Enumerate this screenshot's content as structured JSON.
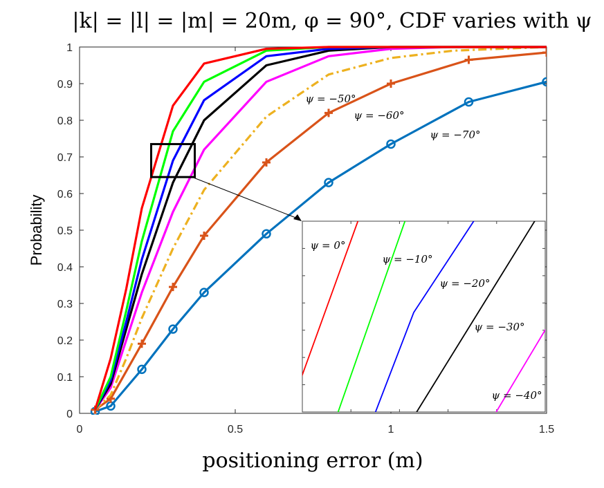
{
  "chart_data": {
    "type": "line",
    "title": "|k| = |l| = |m| = 20m, φ = 90°, CDF varies with ψ",
    "xlabel": "positioning error (m)",
    "ylabel": "Probability",
    "xlim": [
      0,
      1.5
    ],
    "ylim": [
      0,
      1
    ],
    "xticks": [
      0,
      0.5,
      1,
      1.5
    ],
    "xtick_labels": [
      "0",
      "0.5",
      "1",
      "1.5"
    ],
    "yticks": [
      0,
      0.1,
      0.2,
      0.3,
      0.4,
      0.5,
      0.6,
      0.7,
      0.8,
      0.9,
      1
    ],
    "ytick_labels": [
      "0",
      "0.1",
      "0.2",
      "0.3",
      "0.4",
      "0.5",
      "0.6",
      "0.7",
      "0.8",
      "0.9",
      "1"
    ],
    "grid": false,
    "series": [
      {
        "name": "ψ = 0°",
        "color": "#ff0000",
        "style": "solid",
        "marker": "none",
        "x": [
          0.05,
          0.1,
          0.15,
          0.2,
          0.3,
          0.4,
          0.6,
          0.8,
          1.0,
          1.2,
          1.5
        ],
        "y": [
          0.01,
          0.15,
          0.34,
          0.56,
          0.84,
          0.955,
          0.995,
          1.0,
          1.0,
          1.0,
          1.0
        ]
      },
      {
        "name": "ψ = −10°",
        "color": "#00ff00",
        "style": "solid",
        "marker": "none",
        "x": [
          0.05,
          0.1,
          0.15,
          0.2,
          0.3,
          0.4,
          0.6,
          0.8,
          1.0,
          1.2,
          1.5
        ],
        "y": [
          0.01,
          0.1,
          0.28,
          0.47,
          0.77,
          0.905,
          0.99,
          1.0,
          1.0,
          1.0,
          1.0
        ]
      },
      {
        "name": "ψ = −20°",
        "color": "#0000ff",
        "style": "solid",
        "marker": "none",
        "x": [
          0.05,
          0.1,
          0.15,
          0.2,
          0.3,
          0.4,
          0.6,
          0.8,
          1.0,
          1.2,
          1.5
        ],
        "y": [
          0.01,
          0.09,
          0.25,
          0.42,
          0.69,
          0.855,
          0.975,
          0.995,
          1.0,
          1.0,
          1.0
        ]
      },
      {
        "name": "ψ = −30°",
        "color": "#000000",
        "style": "solid",
        "marker": "none",
        "x": [
          0.05,
          0.1,
          0.15,
          0.2,
          0.3,
          0.4,
          0.6,
          0.8,
          1.0,
          1.2,
          1.5
        ],
        "y": [
          0.01,
          0.08,
          0.23,
          0.38,
          0.63,
          0.8,
          0.95,
          0.99,
          1.0,
          1.0,
          1.0
        ]
      },
      {
        "name": "ψ = −40°",
        "color": "#ff00ff",
        "style": "solid",
        "marker": "none",
        "x": [
          0.05,
          0.1,
          0.15,
          0.2,
          0.3,
          0.4,
          0.6,
          0.8,
          1.0,
          1.2,
          1.5
        ],
        "y": [
          0.01,
          0.07,
          0.2,
          0.33,
          0.55,
          0.72,
          0.905,
          0.975,
          0.995,
          1.0,
          1.0
        ]
      },
      {
        "name": "ψ = −50°",
        "color": "#edb120",
        "style": "dashdot",
        "marker": "none",
        "x": [
          0.05,
          0.1,
          0.15,
          0.2,
          0.3,
          0.4,
          0.6,
          0.8,
          1.0,
          1.2,
          1.5
        ],
        "y": [
          0.01,
          0.05,
          0.15,
          0.26,
          0.45,
          0.61,
          0.81,
          0.925,
          0.97,
          0.99,
          1.0
        ]
      },
      {
        "name": "ψ = −60°",
        "color": "#d95319",
        "style": "solid",
        "marker": "plus",
        "x": [
          0.05,
          0.1,
          0.2,
          0.3,
          0.4,
          0.6,
          0.8,
          1.0,
          1.25,
          1.5
        ],
        "y": [
          0.01,
          0.04,
          0.19,
          0.345,
          0.485,
          0.685,
          0.82,
          0.9,
          0.965,
          0.985
        ]
      },
      {
        "name": "ψ = −70°",
        "color": "#0072bd",
        "style": "solid",
        "marker": "circle",
        "x": [
          0.05,
          0.1,
          0.2,
          0.3,
          0.4,
          0.6,
          0.8,
          1.0,
          1.25,
          1.5
        ],
        "y": [
          0.005,
          0.02,
          0.12,
          0.23,
          0.33,
          0.49,
          0.63,
          0.735,
          0.85,
          0.905
        ]
      }
    ],
    "zoom_box": {
      "x": [
        0.23,
        0.37
      ],
      "y": [
        0.645,
        0.735
      ]
    },
    "annotations": [
      {
        "text": "ψ = −50°",
        "series": "ψ = −50°"
      },
      {
        "text": "ψ = −60°",
        "series": "ψ = −60°"
      },
      {
        "text": "ψ = −70°",
        "series": "ψ = −70°"
      }
    ],
    "inset": {
      "labels": [
        "ψ = 0°",
        "ψ = −10°",
        "ψ = −20°",
        "ψ = −30°",
        "ψ = −40°"
      ]
    }
  }
}
